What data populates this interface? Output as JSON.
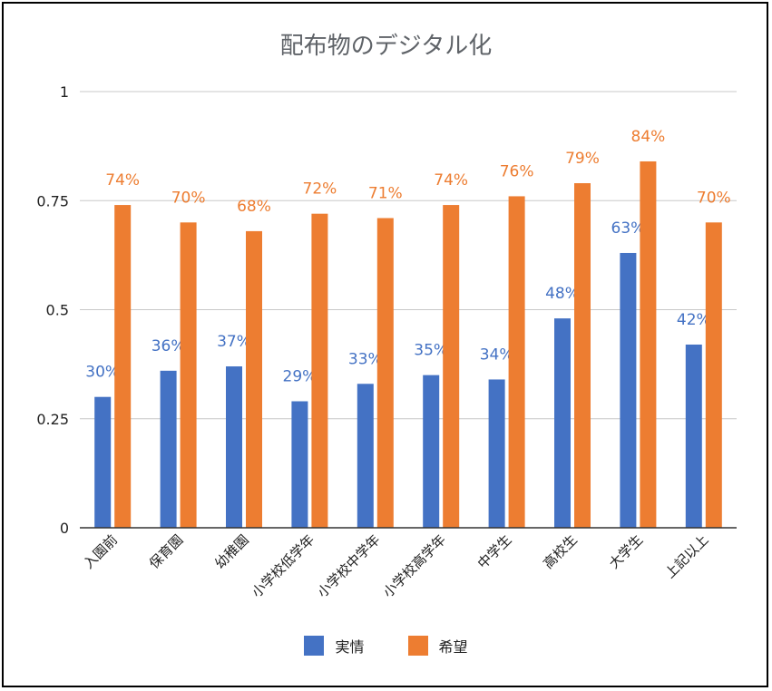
{
  "chart_data": {
    "type": "bar",
    "title": "配布物のデジタル化",
    "categories": [
      "入園前",
      "保育園",
      "幼稚園",
      "小学校低学年",
      "小学校中学年",
      "小学校高学年",
      "中学生",
      "高校生",
      "大学生",
      "上記以上"
    ],
    "series": [
      {
        "name": "実情",
        "color": "#4472c4",
        "values": [
          0.3,
          0.36,
          0.37,
          0.29,
          0.33,
          0.35,
          0.34,
          0.48,
          0.63,
          0.42
        ],
        "labels": [
          "30%",
          "36%",
          "37%",
          "29%",
          "33%",
          "35%",
          "34%",
          "48%",
          "63%",
          "42%"
        ]
      },
      {
        "name": "希望",
        "color": "#ed7d31",
        "values": [
          0.74,
          0.7,
          0.68,
          0.72,
          0.71,
          0.74,
          0.76,
          0.79,
          0.84,
          0.7
        ],
        "labels": [
          "74%",
          "70%",
          "68%",
          "72%",
          "71%",
          "74%",
          "76%",
          "79%",
          "84%",
          "70%"
        ]
      }
    ],
    "ylim": [
      0,
      1
    ],
    "yticks": [
      0,
      0.25,
      0.5,
      0.75,
      1
    ],
    "ytick_labels": [
      "0",
      "0.25",
      "0.5",
      "0.75",
      "1"
    ],
    "grid": true,
    "legend_position": "bottom"
  }
}
